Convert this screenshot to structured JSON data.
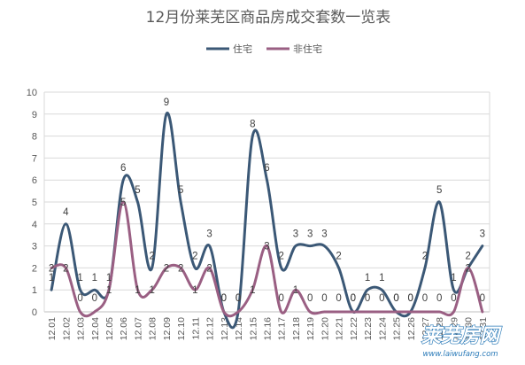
{
  "chart_data": {
    "type": "line",
    "title": "12月份莱芜区商品房成交套数一览表",
    "xlabel": "",
    "ylabel": "",
    "ylim": [
      0,
      10
    ],
    "yticks": [
      0,
      1,
      2,
      3,
      4,
      5,
      6,
      7,
      8,
      9,
      10
    ],
    "grid": true,
    "legend_position": "top-center",
    "categories": [
      "12.01",
      "12.02",
      "12.03",
      "12.04",
      "12.05",
      "12.06",
      "12.07",
      "12.08",
      "12.09",
      "12.10",
      "12.11",
      "12.12",
      "12.13",
      "12.14",
      "12.15",
      "12.16",
      "12.17",
      "12.18",
      "12.19",
      "12.20",
      "12.21",
      "12.22",
      "12.23",
      "12.24",
      "12.25",
      "12.26",
      "12.27",
      "12.28",
      "12.29",
      "12.30",
      "12.31"
    ],
    "tick_labels": [
      "12.01",
      "12.02",
      "12.03",
      "12.04",
      "12.05",
      "12.06",
      "12.07",
      "12.08",
      "12.09",
      "12.10",
      "12.11",
      "12.12",
      "12.13",
      "12.14",
      "12.15",
      "12.16",
      "12.17",
      "12.18",
      "12.19",
      "12.20",
      "12.21",
      "12.22",
      "12.23",
      "12.24",
      "12.25",
      "12.26",
      "12.27",
      "12.28",
      "12.29",
      "12.30",
      "12.31"
    ],
    "series": [
      {
        "name": "住宅",
        "color": "#3b5876",
        "values": [
          1,
          4,
          1,
          1,
          1,
          6,
          5,
          2,
          9,
          5,
          2,
          3,
          0,
          0,
          8,
          6,
          2,
          3,
          3,
          3,
          2,
          0,
          1,
          1,
          0,
          0,
          2,
          5,
          1,
          2,
          3
        ]
      },
      {
        "name": "非住宅",
        "color": "#9a5f83",
        "values": [
          2,
          2,
          0,
          0,
          1,
          5,
          1,
          1,
          2,
          2,
          1,
          2,
          0,
          0,
          1,
          3,
          0,
          1,
          0,
          0,
          0,
          0,
          0,
          0,
          0,
          0,
          0,
          0,
          0,
          2,
          0
        ]
      }
    ]
  },
  "watermark": {
    "text": "莱芜房网",
    "url": "www.laiwufang.com",
    "color": "#2a7ab8"
  }
}
